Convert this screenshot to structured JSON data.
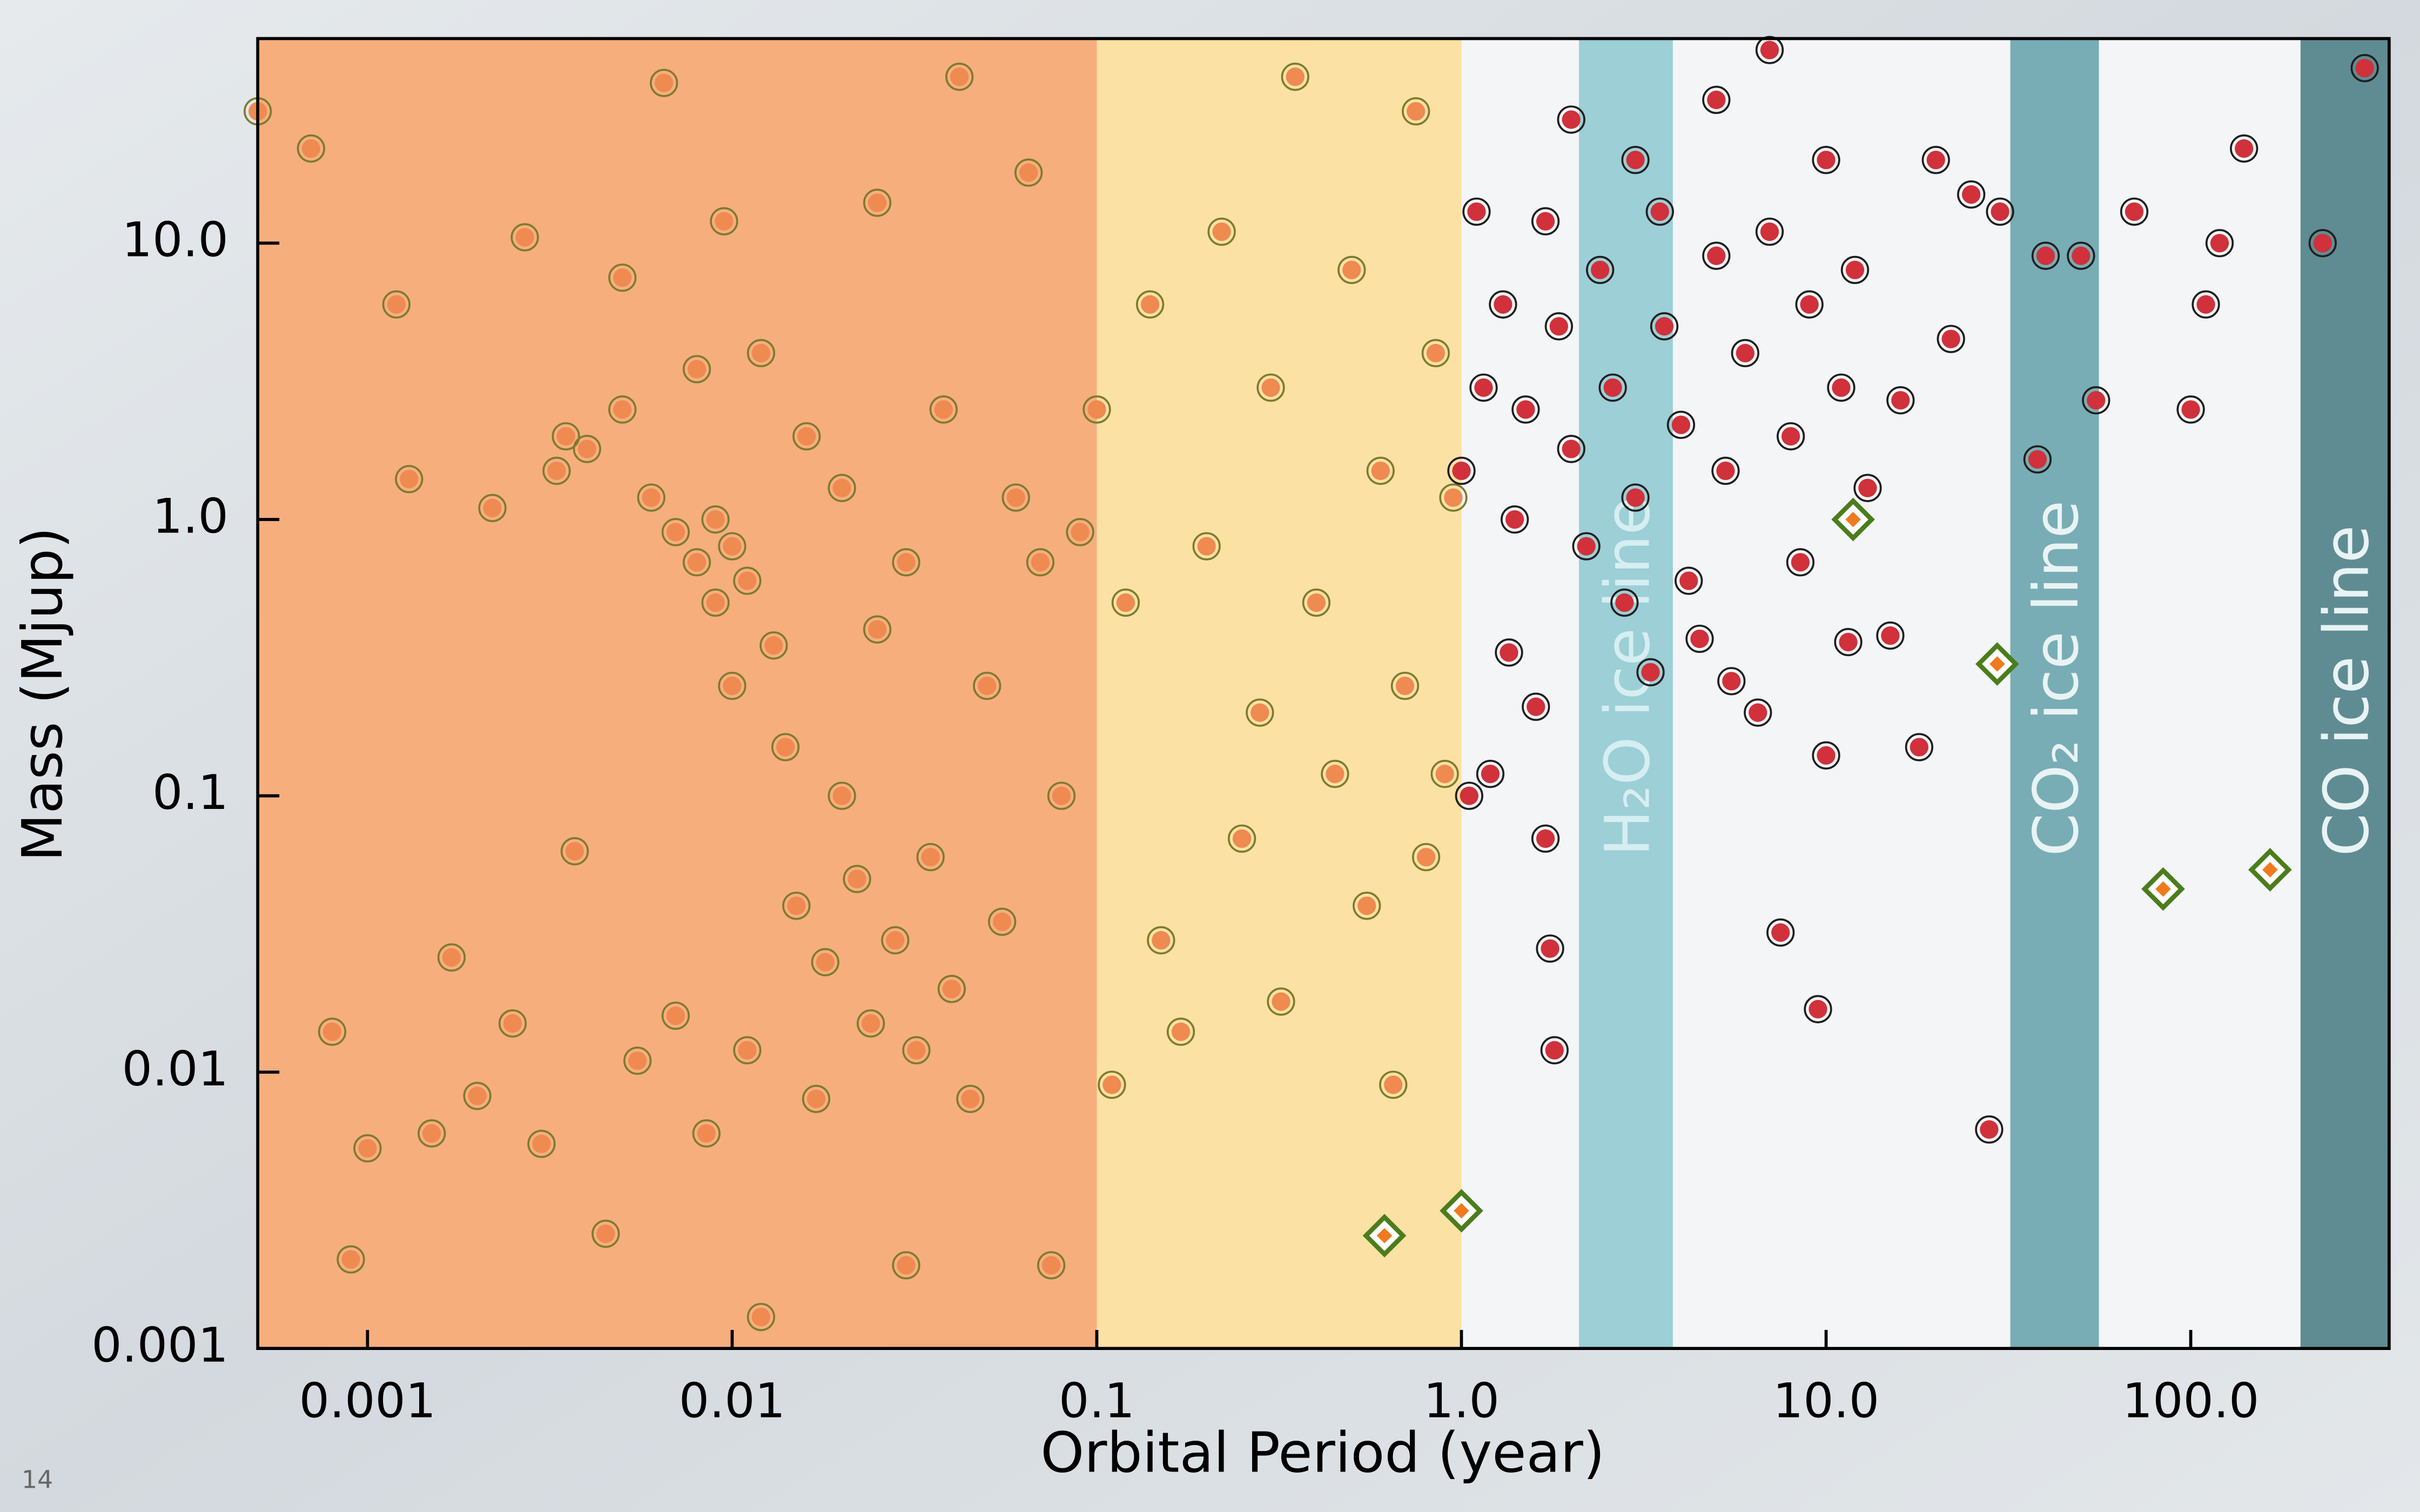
{
  "chart_data": {
    "type": "scatter",
    "xlabel": "Orbital Period (year)",
    "ylabel": "Mass (Mjup)",
    "page_number": "14",
    "xscale": "log",
    "yscale": "log",
    "xlim": [
      0.0005,
      350
    ],
    "ylim": [
      0.001,
      55
    ],
    "xticks": [
      0.001,
      0.01,
      0.1,
      {
        "value": 1,
        "label": "1.0"
      },
      {
        "value": 10,
        "label": "10.0"
      },
      {
        "value": 100,
        "label": "100.0"
      }
    ],
    "yticks": [
      {
        "value": 10,
        "label": "10.0"
      },
      {
        "value": 1,
        "label": "1.0"
      },
      0.1,
      0.01,
      0.001
    ],
    "regions": [
      {
        "xlim": [
          0.0005,
          0.1
        ],
        "color": "#f6ae7d"
      },
      {
        "xlim": [
          0.1,
          1
        ],
        "color": "#fbe1a3"
      },
      {
        "xlim": [
          1,
          350
        ],
        "color": "#f4f5f7"
      },
      {
        "xlim": [
          2.1,
          3.8
        ],
        "color": "#9ccfd6",
        "label": "H₂O ice line",
        "label_color": "#d6eef1"
      },
      {
        "xlim": [
          32,
          56
        ],
        "color": "#78adb5",
        "label": "CO₂ ice line",
        "label_color": "#e9f3f4"
      },
      {
        "xlim": [
          200,
          350
        ],
        "color": "#5f8c93",
        "label": "CO ice line",
        "label_color": "#e9f3f4"
      }
    ],
    "series": [
      {
        "marker": "circle",
        "color": "#ef8a50",
        "edge": "#7d7b2e",
        "x": [
          0.0005,
          0.0007,
          0.0008,
          0.0009,
          0.001,
          0.0012,
          0.0013,
          0.0015,
          0.0017,
          0.002,
          0.0022,
          0.0025,
          0.0027,
          0.003,
          0.0033,
          0.0035,
          0.0037,
          0.004,
          0.0045,
          0.005,
          0.005,
          0.0055,
          0.006,
          0.0065,
          0.007,
          0.007,
          0.008,
          0.008,
          0.0085,
          0.009,
          0.009,
          0.0095,
          0.01,
          0.01,
          0.011,
          0.011,
          0.012,
          0.012,
          0.013,
          0.014,
          0.015,
          0.016,
          0.017,
          0.018,
          0.02,
          0.02,
          0.022,
          0.024,
          0.025,
          0.025,
          0.028,
          0.03,
          0.03,
          0.032,
          0.035,
          0.038,
          0.04,
          0.042,
          0.045,
          0.05,
          0.055,
          0.06,
          0.065,
          0.07,
          0.075,
          0.08,
          0.09,
          0.1,
          0.11,
          0.12,
          0.14,
          0.15,
          0.17,
          0.2,
          0.22,
          0.25,
          0.28,
          0.3,
          0.32,
          0.35,
          0.4,
          0.45,
          0.5,
          0.55,
          0.6,
          0.65,
          0.7,
          0.75,
          0.8,
          0.85,
          0.9,
          0.95
        ],
        "y": [
          30,
          22,
          0.014,
          0.0021,
          0.0053,
          6,
          1.4,
          0.006,
          0.026,
          0.0082,
          1.1,
          0.015,
          10.5,
          0.0055,
          1.5,
          2,
          0.063,
          1.8,
          0.0026,
          7.5,
          2.5,
          0.011,
          1.2,
          38,
          0.9,
          0.016,
          3.5,
          0.7,
          0.006,
          1,
          0.5,
          12,
          0.8,
          0.25,
          0.6,
          0.012,
          4,
          0.0013,
          0.35,
          0.15,
          0.04,
          2,
          0.008,
          0.025,
          0.1,
          1.3,
          0.05,
          0.015,
          14,
          0.4,
          0.03,
          0.002,
          0.7,
          0.012,
          0.06,
          2.5,
          0.02,
          40,
          0.008,
          0.25,
          0.035,
          1.2,
          18,
          0.7,
          0.002,
          0.1,
          0.9,
          2.5,
          0.009,
          0.5,
          6,
          0.03,
          0.014,
          0.8,
          11,
          0.07,
          0.2,
          3,
          0.018,
          40,
          0.5,
          0.12,
          8,
          0.04,
          1.5,
          0.009,
          0.25,
          30,
          0.06,
          4,
          0.12,
          1.2
        ]
      },
      {
        "marker": "circle",
        "color": "#d0313a",
        "edge": "#1e1e1e",
        "x": [
          1,
          1.05,
          1.1,
          1.15,
          1.2,
          1.3,
          1.35,
          1.4,
          1.5,
          1.6,
          1.7,
          1.7,
          1.75,
          1.8,
          1.85,
          2,
          2,
          2.2,
          2.4,
          2.6,
          2.8,
          3,
          3,
          3.3,
          3.5,
          3.6,
          4,
          4.2,
          4.5,
          5,
          5,
          5.3,
          5.5,
          6,
          6.5,
          7,
          7,
          7.5,
          8,
          8.5,
          9,
          9.5,
          10,
          10,
          11,
          11.5,
          12,
          13,
          15,
          16,
          18,
          20,
          22,
          25,
          28,
          30,
          38,
          40,
          50,
          55,
          70,
          100,
          110,
          120,
          140,
          230,
          300
        ],
        "y": [
          1.5,
          0.1,
          13,
          3,
          0.12,
          6,
          0.33,
          1,
          2.5,
          0.21,
          0.07,
          12,
          0.028,
          0.012,
          5,
          28,
          1.8,
          0.8,
          8,
          3,
          0.5,
          20,
          1.2,
          0.28,
          13,
          5,
          2.2,
          0.6,
          0.37,
          33,
          9,
          1.5,
          0.26,
          4,
          0.2,
          50,
          11,
          0.032,
          2,
          0.7,
          6,
          0.0169,
          0.14,
          20,
          3,
          0.36,
          8,
          1.3,
          0.38,
          2.7,
          0.15,
          20,
          4.5,
          15,
          0.0062,
          13,
          1.65,
          9,
          9,
          2.7,
          13,
          2.5,
          6,
          10,
          22,
          10,
          43
        ]
      },
      {
        "marker": "diamond",
        "color": "#f07a1e",
        "edge": "#4b7d1c",
        "x": [
          0.615,
          1,
          11.86,
          29.46,
          84,
          165
        ],
        "y": [
          0.00256,
          0.00315,
          1,
          0.3,
          0.046,
          0.054
        ]
      }
    ]
  }
}
